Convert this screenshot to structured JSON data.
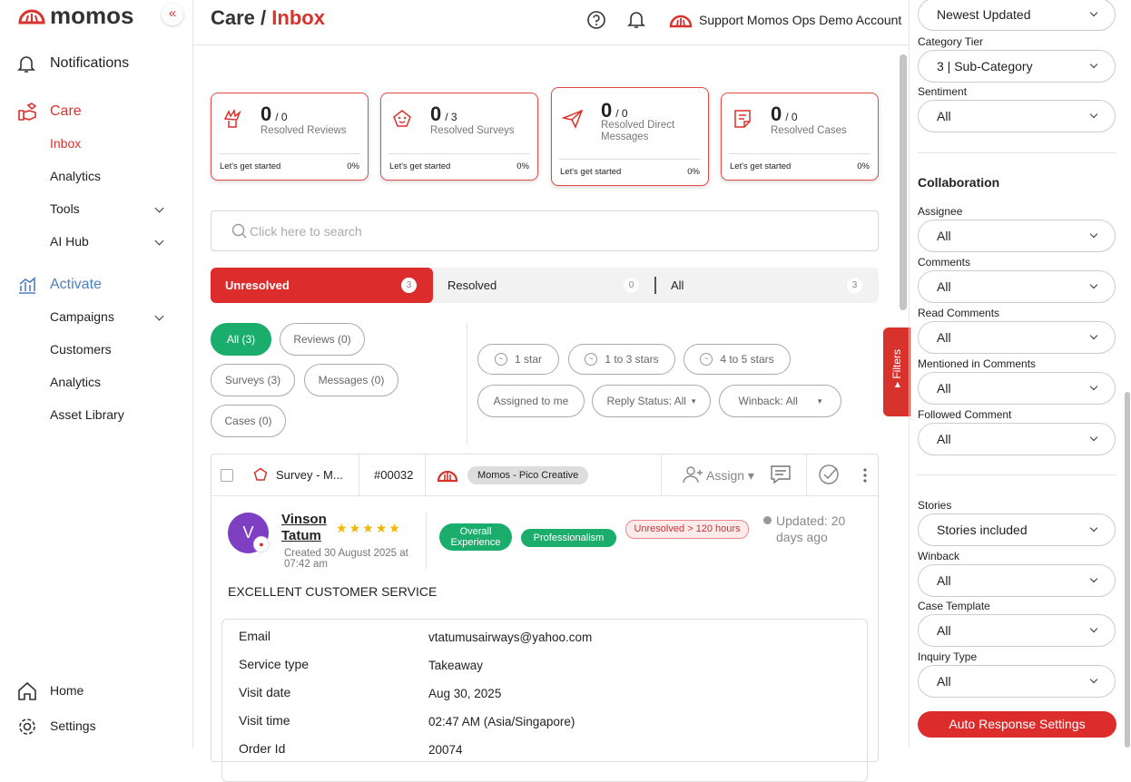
{
  "sidebar": {
    "brand": "momos",
    "collapse": "«",
    "top": [
      "Notifications"
    ],
    "care": {
      "title": "Care",
      "items": [
        "Inbox",
        "Analytics",
        "Tools",
        "AI Hub"
      ]
    },
    "activate": {
      "title": "Activate",
      "items": [
        "Campaigns",
        "Customers",
        "Analytics",
        "Asset Library"
      ]
    },
    "bottom": [
      "Home",
      "Settings"
    ]
  },
  "header": {
    "parent": "Care /",
    "current": "Inbox",
    "account": "Support Momos Ops Demo Account"
  },
  "stats": [
    {
      "count": "0",
      "total": "/ 0",
      "label": "Resolved Reviews",
      "footer": "Let's get started",
      "percent": "0%"
    },
    {
      "count": "0",
      "total": "/ 3",
      "label": "Resolved Surveys",
      "footer": "Let's get started",
      "percent": "0%"
    },
    {
      "count": "0",
      "total": "/ 0",
      "label": "Resolved Direct Messages",
      "footer": "Let's get started",
      "percent": "0%"
    },
    {
      "count": "0",
      "total": "/ 0",
      "label": "Resolved Cases",
      "footer": "Let's get started",
      "percent": "0%"
    }
  ],
  "search": {
    "placeholder": "Click here to search"
  },
  "tabs": [
    {
      "label": "Unresolved",
      "count": 3
    },
    {
      "label": "Resolved",
      "count": 0
    },
    {
      "label": "All",
      "count": 3
    }
  ],
  "type_filters": [
    "All (3)",
    "Reviews (0)",
    "Surveys (3)",
    "Messages (0)",
    "Cases (0)"
  ],
  "rating_filters": [
    "1 star",
    "1 to 3 stars",
    "4 to 5 stars"
  ],
  "other_filters": [
    "Assigned to me",
    "Reply Status: All",
    "Winback: All"
  ],
  "filters_tab": "Filters",
  "conversation": {
    "source": "Survey - M...",
    "id": "#00032",
    "account": "Momos - Pico Creative",
    "assign": "Assign",
    "avatar": "V",
    "name": "Vinson Tatum",
    "rating": 5,
    "created": "Created 30 August 2025 at 07:42 am",
    "tags": [
      "Overall Experience",
      "Professionalism"
    ],
    "status": "Unresolved > 120 hours",
    "updated": "Updated: 20 days ago",
    "headline": "EXCELLENT CUSTOMER SERVICE",
    "details": [
      {
        "label": "Email",
        "value": "vtatumusairways@yahoo.com"
      },
      {
        "label": "Service type",
        "value": "Takeaway"
      },
      {
        "label": "Visit date",
        "value": "Aug 30, 2025"
      },
      {
        "label": "Visit time",
        "value": "02:47 AM (Asia/Singapore)"
      },
      {
        "label": "Order Id",
        "value": "20074"
      }
    ]
  },
  "right_panel": {
    "sort": "Newest Updated",
    "group1": [
      {
        "label": "Category Tier",
        "value": "3 | Sub-Category"
      },
      {
        "label": "Sentiment",
        "value": "All"
      }
    ],
    "collaboration": {
      "title": "Collaboration",
      "fields": [
        {
          "label": "Assignee",
          "value": "All"
        },
        {
          "label": "Comments",
          "value": "All"
        },
        {
          "label": "Read Comments",
          "value": "All"
        },
        {
          "label": "Mentioned in Comments",
          "value": "All"
        },
        {
          "label": "Followed Comment",
          "value": "All"
        }
      ]
    },
    "group3": [
      {
        "label": "Stories",
        "value": "Stories included"
      },
      {
        "label": "Winback",
        "value": "All"
      },
      {
        "label": "Case Template",
        "value": "All"
      },
      {
        "label": "Inquiry Type",
        "value": "All"
      }
    ],
    "button": "Auto Response Settings"
  }
}
